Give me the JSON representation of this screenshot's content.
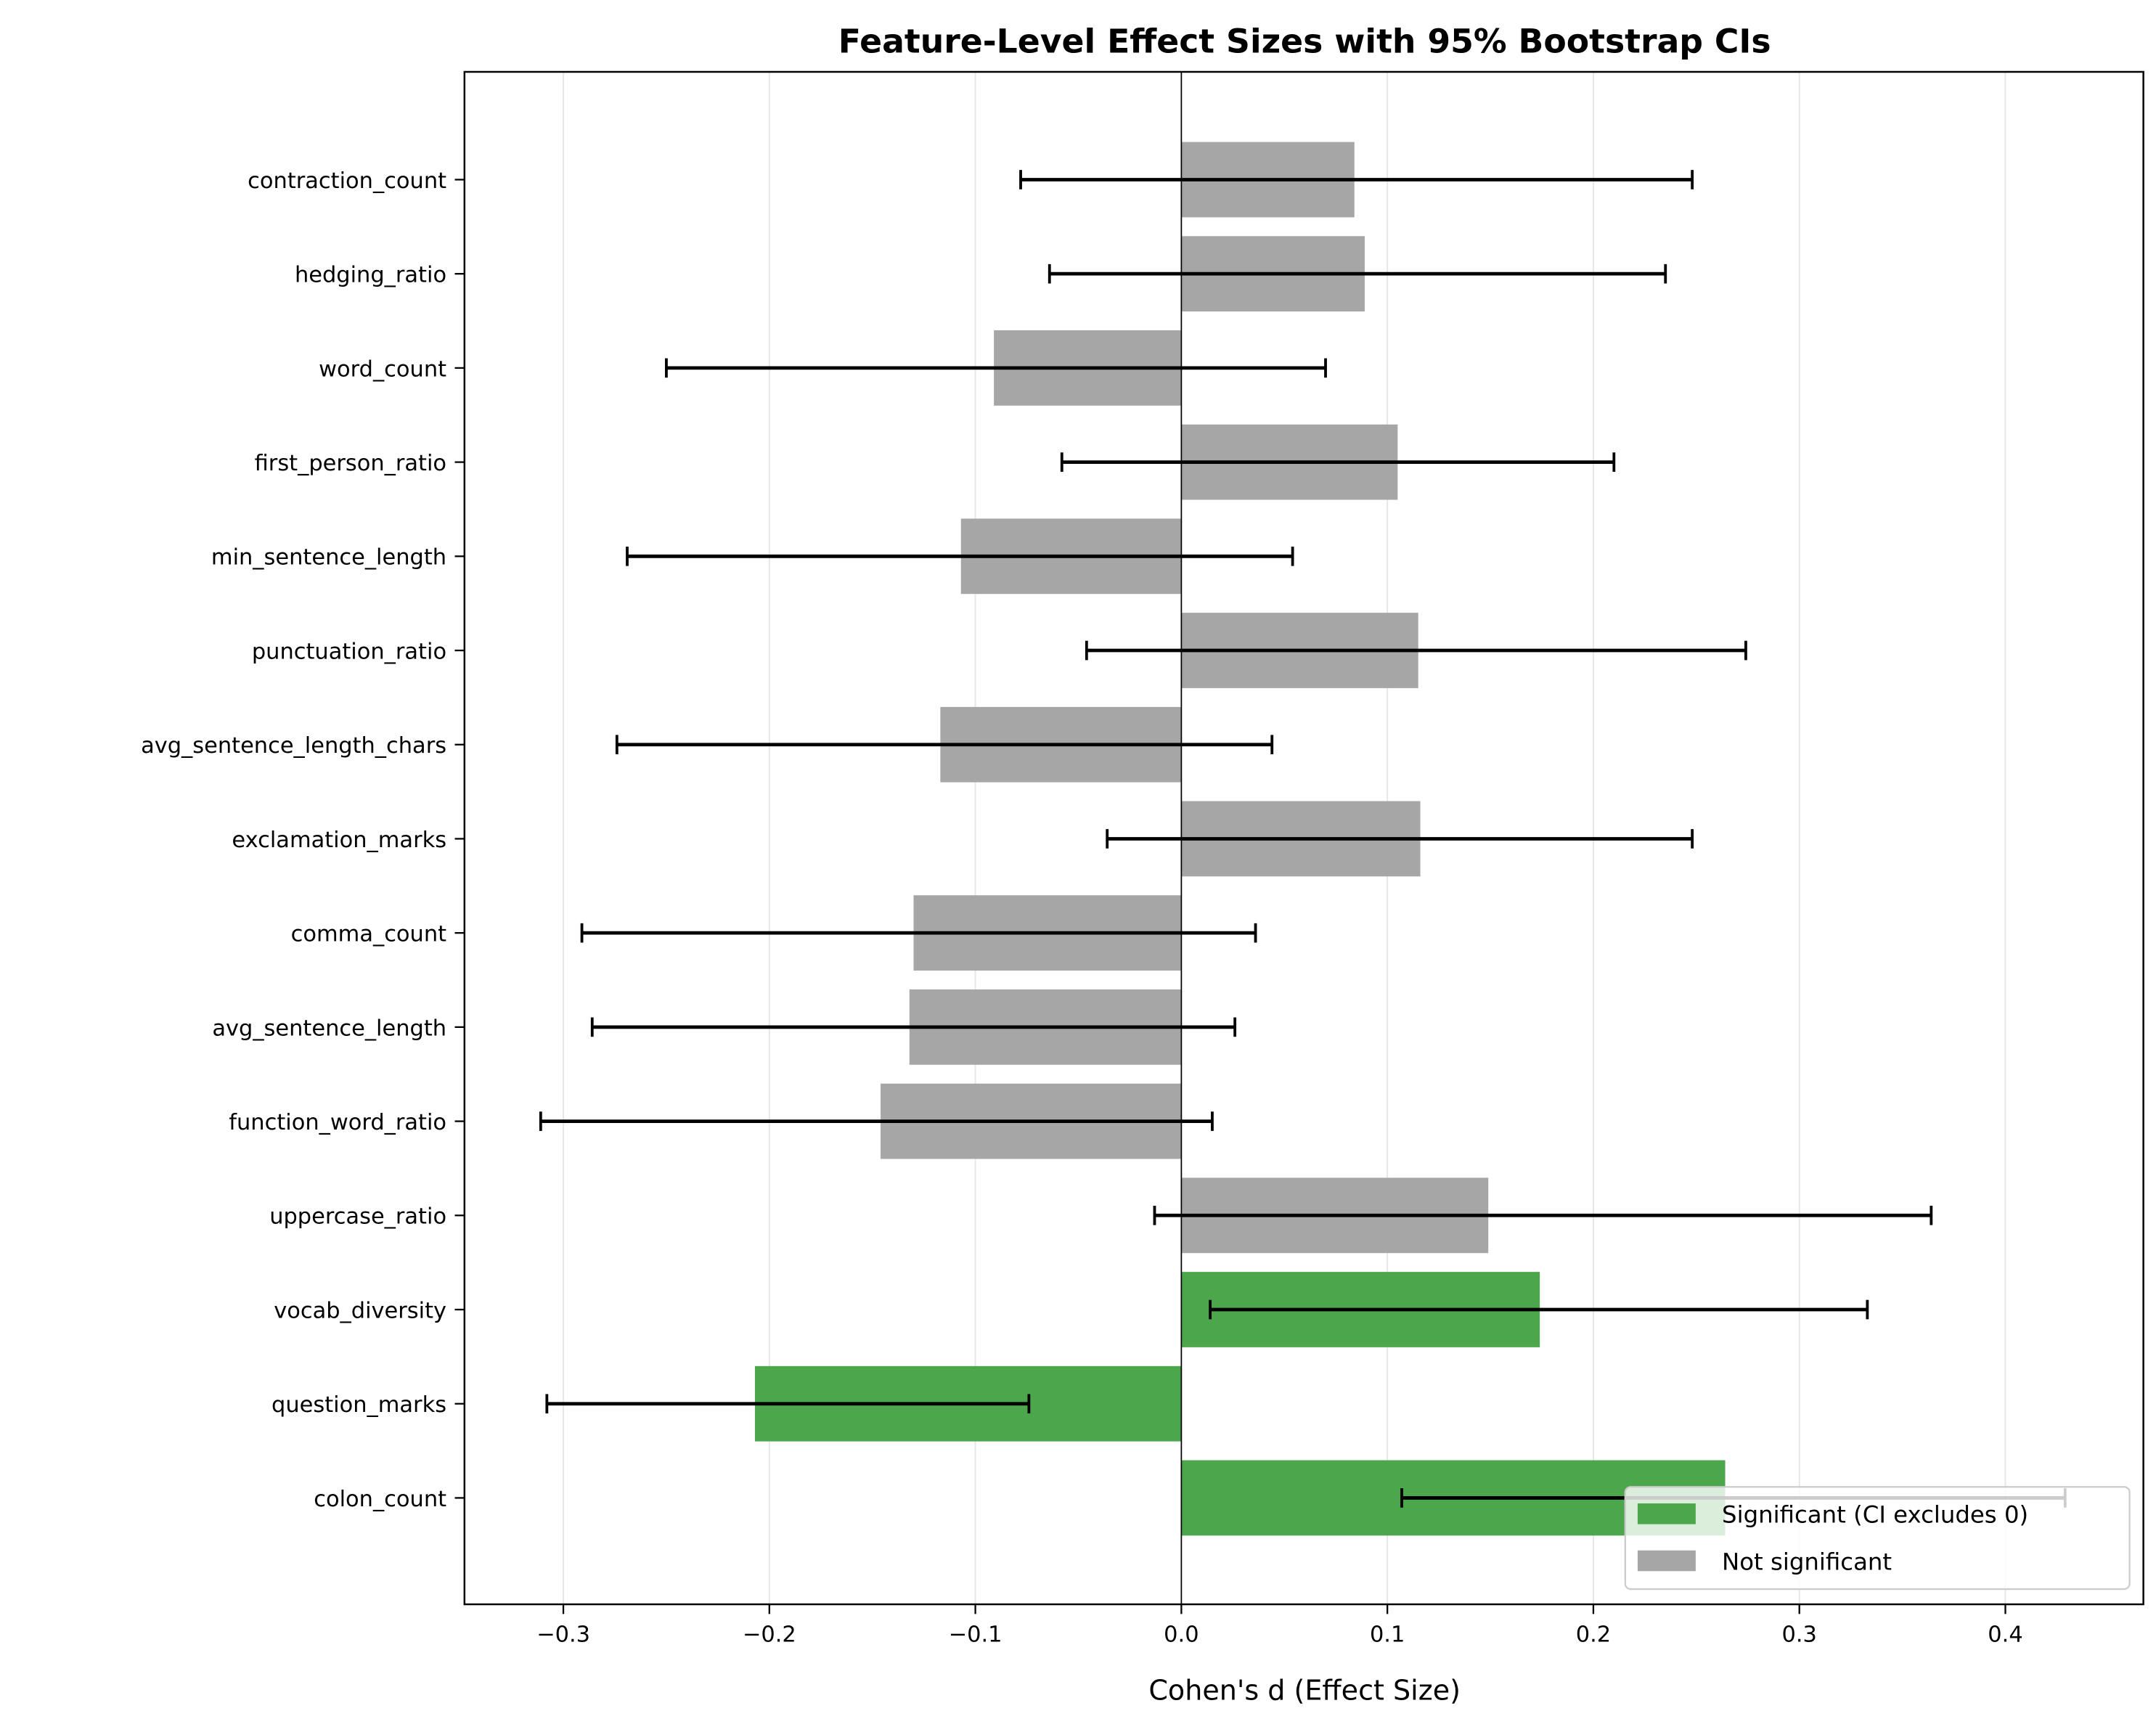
{
  "chart_data": {
    "type": "bar",
    "orientation": "horizontal",
    "title": "Feature-Level Effect Sizes with 95% Bootstrap CIs",
    "xlabel": "Cohen's d (Effect Size)",
    "ylabel": "",
    "xlim": [
      -0.348,
      0.467
    ],
    "xticks": [
      -0.3,
      -0.2,
      -0.1,
      0.0,
      0.1,
      0.2,
      0.3,
      0.4
    ],
    "xtick_labels": [
      "−0.3",
      "−0.2",
      "−0.1",
      "0.0",
      "0.1",
      "0.2",
      "0.3",
      "0.4"
    ],
    "grid": "vertical",
    "legend_position": "lower-right",
    "colors": {
      "significant": "#4ca64c",
      "not_significant": "#a6a6a6"
    },
    "legend": [
      {
        "key": "significant",
        "label": "Significant (CI excludes 0)"
      },
      {
        "key": "not_significant",
        "label": "Not significant"
      }
    ],
    "categories": [
      "colon_count",
      "question_marks",
      "vocab_diversity",
      "uppercase_ratio",
      "function_word_ratio",
      "avg_sentence_length",
      "comma_count",
      "exclamation_marks",
      "avg_sentence_length_chars",
      "punctuation_ratio",
      "min_sentence_length",
      "first_person_ratio",
      "word_count",
      "hedging_ratio",
      "contraction_count"
    ],
    "values": [
      0.264,
      -0.207,
      0.174,
      0.149,
      -0.146,
      -0.132,
      -0.13,
      0.116,
      -0.117,
      0.115,
      -0.107,
      0.105,
      -0.091,
      0.089,
      0.084
    ],
    "ci_low": [
      0.107,
      -0.308,
      0.014,
      -0.013,
      -0.311,
      -0.286,
      -0.291,
      -0.036,
      -0.274,
      -0.046,
      -0.269,
      -0.058,
      -0.25,
      -0.064,
      -0.078
    ],
    "ci_high": [
      0.429,
      -0.074,
      0.333,
      0.364,
      0.015,
      0.026,
      0.036,
      0.248,
      0.044,
      0.274,
      0.054,
      0.21,
      0.07,
      0.235,
      0.248
    ],
    "significant": [
      true,
      true,
      true,
      false,
      false,
      false,
      false,
      false,
      false,
      false,
      false,
      false,
      false,
      false,
      false
    ]
  }
}
